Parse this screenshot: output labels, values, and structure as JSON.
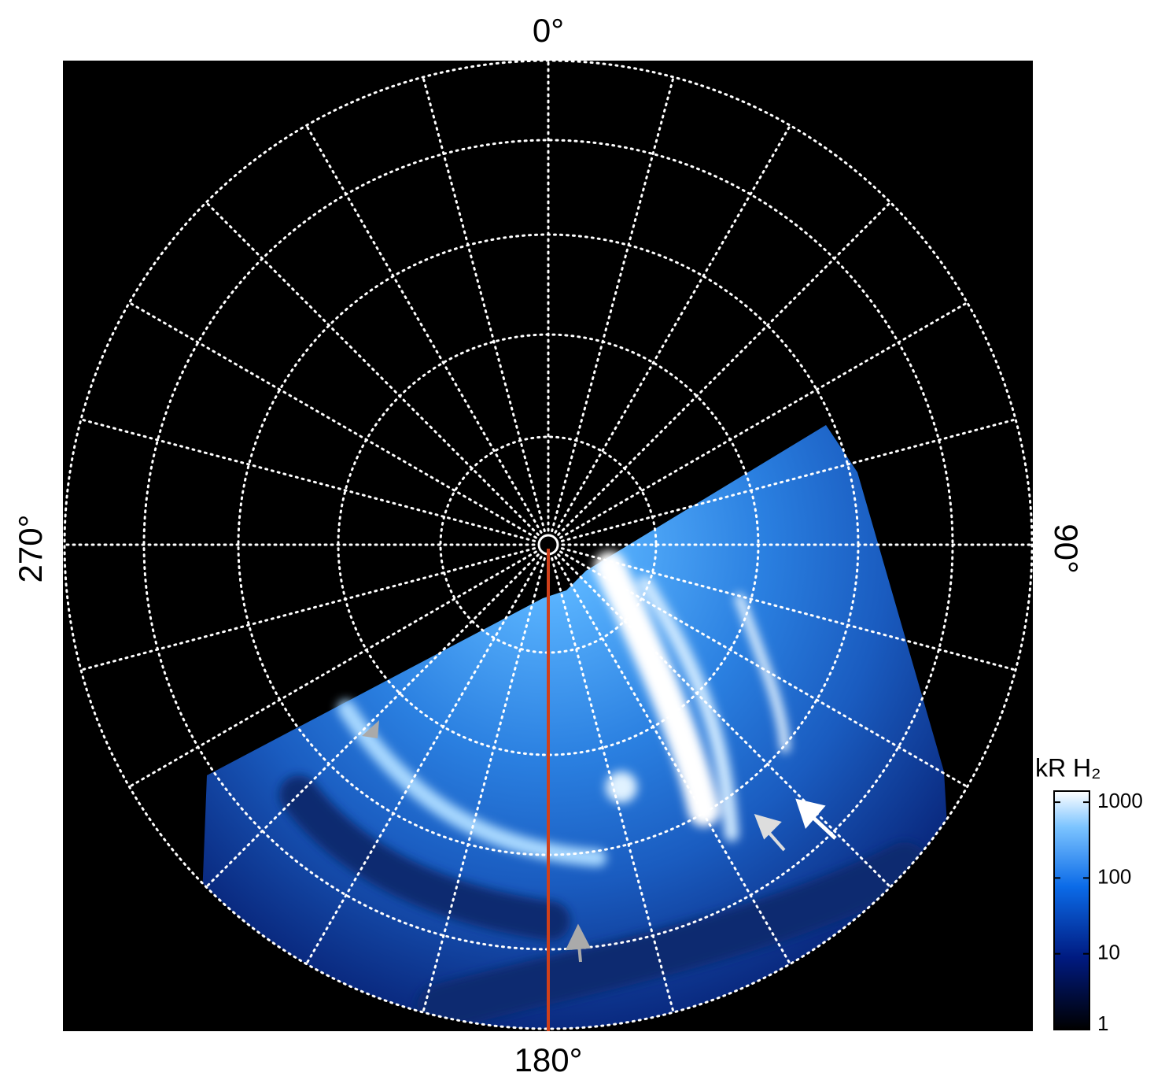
{
  "angle_labels": {
    "top": "0°",
    "right": "90°",
    "bottom": "180°",
    "left": "270°"
  },
  "colorbar": {
    "label": "kR H₂",
    "scale": "log",
    "lim": [
      1,
      1400
    ],
    "ticks": [
      1,
      10,
      100,
      1000
    ]
  }
}
